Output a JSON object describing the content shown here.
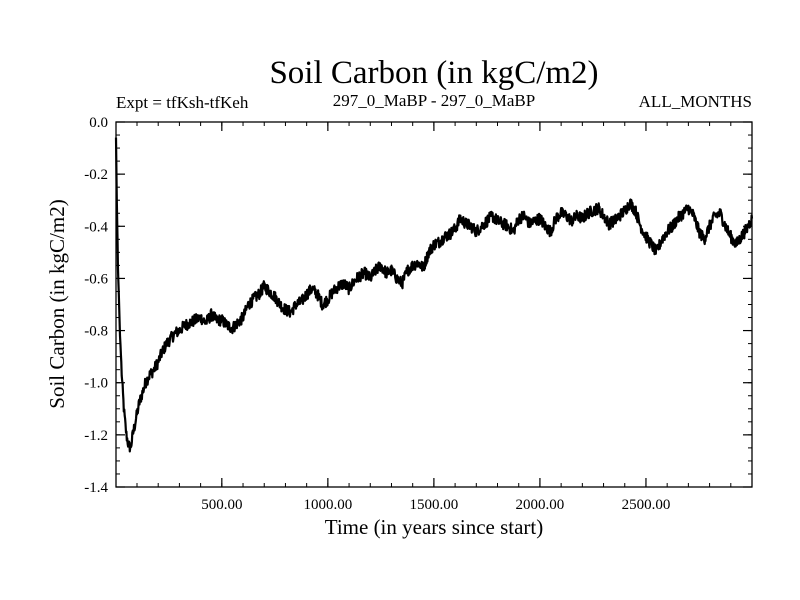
{
  "chart_data": {
    "type": "line",
    "title": "Soil Carbon (in kgC/m2)",
    "left_string": "Expt = tfKsh-tfKeh",
    "center_string": "297_0_MaBP - 297_0_MaBP",
    "right_string": "ALL_MONTHS",
    "xlabel": "Time (in years since start)",
    "ylabel": "Soil Carbon (in kgC/m2)",
    "xlim": [
      1,
      3000
    ],
    "ylim": [
      -1.4,
      0.0
    ],
    "x_ticks": [
      500,
      1000,
      1500,
      2000,
      2500
    ],
    "x_tick_labels": [
      "500.00",
      "1000.00",
      "1500.00",
      "2000.00",
      "2500.00"
    ],
    "y_ticks": [
      0.0,
      -0.2,
      -0.4,
      -0.6,
      -0.8,
      -1.0,
      -1.2,
      -1.4
    ],
    "y_tick_labels": [
      "0.0",
      "-0.2",
      "-0.4",
      "-0.6",
      "-0.8",
      "-1.0",
      "-1.2",
      "-1.4"
    ],
    "line_color": "#000000",
    "series": [
      {
        "name": "Soil Carbon",
        "x": [
          1,
          5,
          10,
          20,
          30,
          40,
          50,
          60,
          70,
          80,
          90,
          100,
          110,
          125,
          140,
          160,
          180,
          200,
          220,
          240,
          260,
          280,
          300,
          325,
          350,
          375,
          400,
          425,
          450,
          475,
          500,
          525,
          550,
          575,
          600,
          625,
          650,
          675,
          700,
          725,
          750,
          775,
          800,
          825,
          850,
          875,
          900,
          925,
          950,
          975,
          1000,
          1025,
          1050,
          1075,
          1100,
          1125,
          1150,
          1175,
          1200,
          1225,
          1250,
          1275,
          1300,
          1325,
          1350,
          1375,
          1400,
          1425,
          1450,
          1475,
          1500,
          1525,
          1550,
          1575,
          1600,
          1625,
          1650,
          1675,
          1700,
          1725,
          1750,
          1775,
          1800,
          1825,
          1850,
          1875,
          1900,
          1925,
          1950,
          1975,
          2000,
          2025,
          2050,
          2075,
          2100,
          2125,
          2150,
          2175,
          2200,
          2225,
          2250,
          2275,
          2300,
          2325,
          2350,
          2375,
          2400,
          2425,
          2450,
          2475,
          2500,
          2525,
          2550,
          2575,
          2600,
          2625,
          2650,
          2675,
          2700,
          2725,
          2750,
          2775,
          2800,
          2825,
          2850,
          2875,
          2900,
          2925,
          2950,
          2975,
          3000
        ],
        "y": [
          -0.06,
          -0.3,
          -0.55,
          -0.82,
          -1.0,
          -1.12,
          -1.2,
          -1.24,
          -1.25,
          -1.2,
          -1.16,
          -1.12,
          -1.08,
          -1.04,
          -1.0,
          -0.97,
          -0.95,
          -0.92,
          -0.88,
          -0.85,
          -0.83,
          -0.81,
          -0.8,
          -0.78,
          -0.77,
          -0.76,
          -0.75,
          -0.77,
          -0.74,
          -0.76,
          -0.76,
          -0.78,
          -0.79,
          -0.77,
          -0.75,
          -0.7,
          -0.68,
          -0.66,
          -0.63,
          -0.65,
          -0.67,
          -0.7,
          -0.72,
          -0.73,
          -0.7,
          -0.69,
          -0.66,
          -0.64,
          -0.66,
          -0.7,
          -0.68,
          -0.65,
          -0.63,
          -0.62,
          -0.64,
          -0.61,
          -0.59,
          -0.58,
          -0.6,
          -0.57,
          -0.55,
          -0.58,
          -0.57,
          -0.6,
          -0.62,
          -0.57,
          -0.55,
          -0.54,
          -0.56,
          -0.5,
          -0.47,
          -0.46,
          -0.44,
          -0.43,
          -0.41,
          -0.37,
          -0.39,
          -0.4,
          -0.42,
          -0.4,
          -0.38,
          -0.36,
          -0.38,
          -0.39,
          -0.4,
          -0.42,
          -0.37,
          -0.36,
          -0.39,
          -0.38,
          -0.37,
          -0.4,
          -0.42,
          -0.37,
          -0.35,
          -0.36,
          -0.38,
          -0.36,
          -0.37,
          -0.35,
          -0.34,
          -0.33,
          -0.36,
          -0.39,
          -0.38,
          -0.36,
          -0.34,
          -0.31,
          -0.34,
          -0.4,
          -0.44,
          -0.47,
          -0.5,
          -0.45,
          -0.42,
          -0.4,
          -0.37,
          -0.35,
          -0.33,
          -0.36,
          -0.42,
          -0.45,
          -0.4,
          -0.36,
          -0.35,
          -0.4,
          -0.44,
          -0.47,
          -0.44,
          -0.41,
          -0.37
        ]
      }
    ]
  }
}
